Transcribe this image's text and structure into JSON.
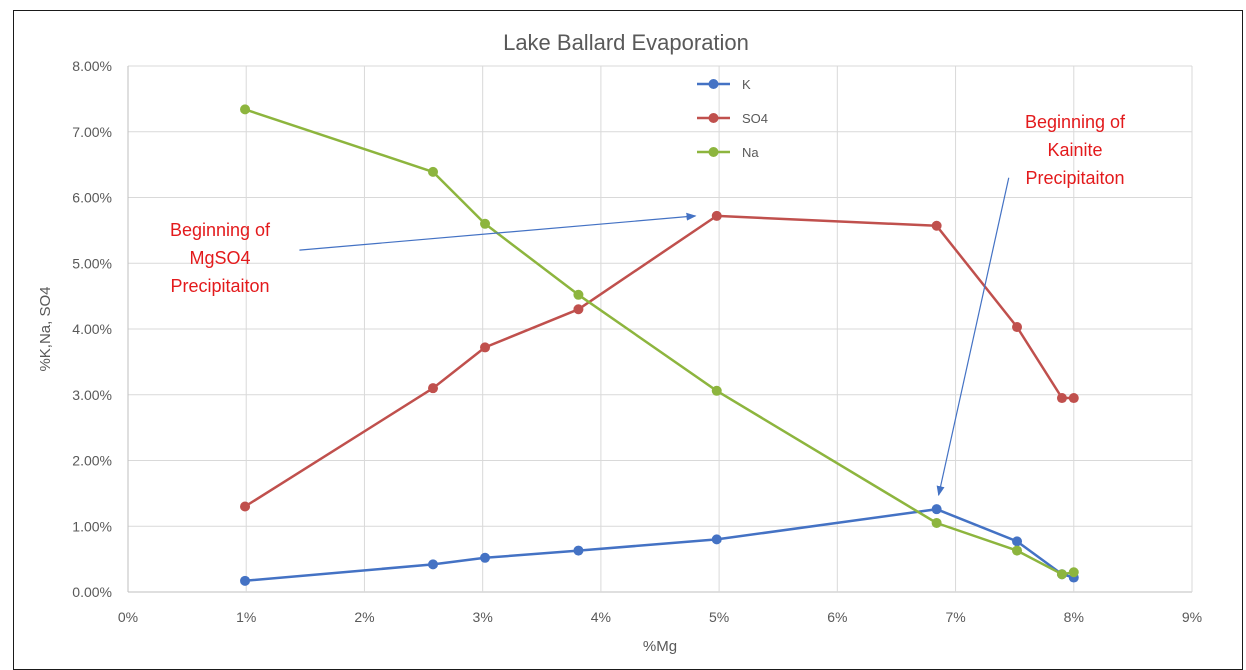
{
  "chart_data": {
    "type": "line",
    "title": "Lake Ballard Evaporation",
    "xlabel": "%Mg",
    "ylabel": "%K,Na, SO4",
    "xlim": [
      0,
      9
    ],
    "ylim": [
      0,
      8
    ],
    "x_ticks": [
      "0%",
      "1%",
      "2%",
      "3%",
      "4%",
      "5%",
      "6%",
      "7%",
      "8%",
      "9%"
    ],
    "y_ticks": [
      "0.00%",
      "1.00%",
      "2.00%",
      "3.00%",
      "4.00%",
      "5.00%",
      "6.00%",
      "7.00%",
      "8.00%"
    ],
    "grid": true,
    "legend_position": "top-center",
    "series": [
      {
        "name": "K",
        "color": "#4472c4",
        "x": [
          0.99,
          2.58,
          3.02,
          3.81,
          4.98,
          6.84,
          7.52,
          7.9,
          8.0
        ],
        "y": [
          0.17,
          0.42,
          0.52,
          0.63,
          0.8,
          1.26,
          0.77,
          0.27,
          0.22
        ]
      },
      {
        "name": "SO4",
        "color": "#c0504d",
        "x": [
          0.99,
          2.58,
          3.02,
          3.81,
          4.98,
          6.84,
          7.52,
          7.9,
          8.0
        ],
        "y": [
          1.3,
          3.1,
          3.72,
          4.3,
          5.72,
          5.57,
          4.03,
          2.95,
          2.95
        ]
      },
      {
        "name": "Na",
        "color": "#8db53e",
        "x": [
          0.99,
          2.58,
          3.02,
          3.81,
          4.98,
          6.84,
          7.52,
          7.9,
          8.0
        ],
        "y": [
          7.34,
          6.39,
          5.6,
          4.52,
          3.06,
          1.05,
          0.63,
          0.27,
          0.3
        ]
      }
    ],
    "annotations": [
      {
        "lines": [
          "Beginning of",
          "MgSO4",
          "Precipitaiton"
        ],
        "arrow_from": [
          1.45,
          5.2
        ],
        "arrow_to": [
          4.8,
          5.72
        ]
      },
      {
        "lines": [
          "Beginning of",
          "Kainite",
          "Precipitaiton"
        ],
        "arrow_from": [
          7.45,
          6.3
        ],
        "arrow_to": [
          6.84,
          1.26
        ]
      }
    ]
  }
}
